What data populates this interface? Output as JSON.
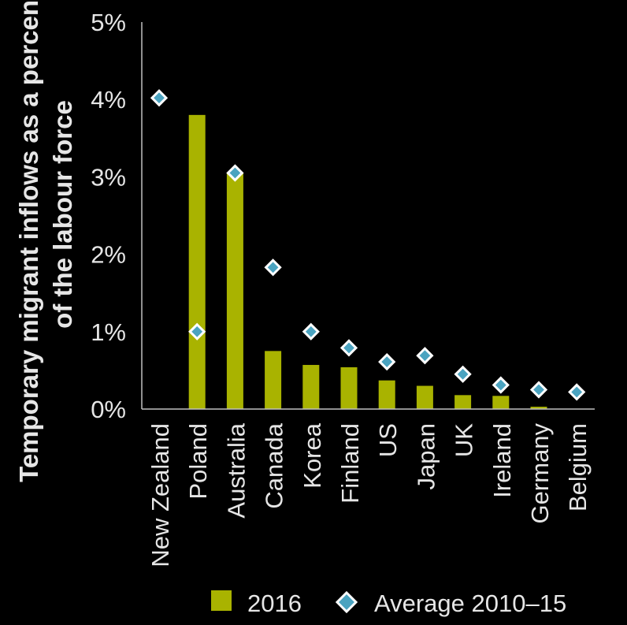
{
  "colors": {
    "background": "#000000",
    "bar": "#a9b300",
    "marker": "#4aa3c0",
    "marker_outline": "#ffffff",
    "axis": "#bfbfbf",
    "text": "#e6e6e6"
  },
  "chart_data": {
    "type": "bar",
    "title": "",
    "xlabel": "",
    "ylabel": "Temporary migrant inflows as a percentage of the labour force",
    "ylim": [
      0,
      5
    ],
    "y_ticks": [
      0,
      1,
      2,
      3,
      4,
      5
    ],
    "y_tick_labels": [
      "0%",
      "1%",
      "2%",
      "3%",
      "4%",
      "5%"
    ],
    "categories": [
      "New Zealand",
      "Poland",
      "Australia",
      "Canada",
      "Korea",
      "Finland",
      "US",
      "Japan",
      "UK",
      "Ireland",
      "Germany",
      "Belgium"
    ],
    "series": [
      {
        "name": "2016",
        "kind": "bar",
        "values": [
          0,
          3.8,
          3.05,
          0.75,
          0.57,
          0.54,
          0.37,
          0.3,
          0.18,
          0.17,
          0.03,
          0
        ]
      },
      {
        "name": "Average 2010–15",
        "kind": "marker",
        "values": [
          4.02,
          1.0,
          3.05,
          1.83,
          1.0,
          0.79,
          0.61,
          0.69,
          0.45,
          0.31,
          0.25,
          0.22
        ]
      }
    ],
    "legend": {
      "position": "bottom-right",
      "entries": [
        "2016",
        "Average 2010–15"
      ]
    },
    "grid": false
  }
}
